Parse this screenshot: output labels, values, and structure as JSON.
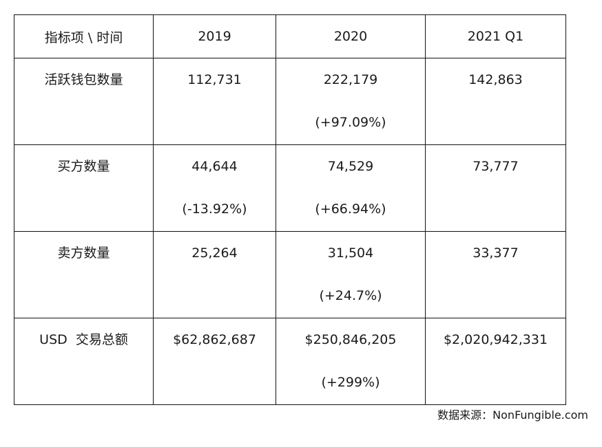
{
  "table": {
    "header": {
      "corner": "指标项 \\ 时间",
      "col_2019": "2019",
      "col_2020": "2020",
      "col_2021": "2021 Q1"
    },
    "rows": [
      {
        "label": "活跃钱包数量",
        "y2019": "112,731",
        "y2019_change": "",
        "y2020": "222,179",
        "y2020_change": "(+97.09%)",
        "y2021": "142,863",
        "y2021_change": ""
      },
      {
        "label": "买方数量",
        "y2019": "44,644",
        "y2019_change": "(-13.92%)",
        "y2020": "74,529",
        "y2020_change": "(+66.94%)",
        "y2021": "73,777",
        "y2021_change": ""
      },
      {
        "label": "卖方数量",
        "y2019": "25,264",
        "y2019_change": "",
        "y2020": "31,504",
        "y2020_change": "(+24.7%)",
        "y2021": "33,377",
        "y2021_change": ""
      },
      {
        "label": "USD  交易总额",
        "y2019": "$62,862,687",
        "y2019_change": "",
        "y2020": "$250,846,205",
        "y2020_change": "(+299%)",
        "y2021": "$2,020,942,331",
        "y2021_change": ""
      }
    ]
  },
  "source": "数据来源：NonFungible.com"
}
